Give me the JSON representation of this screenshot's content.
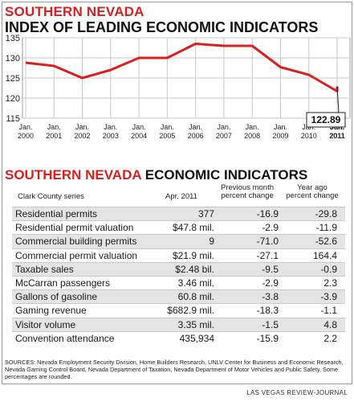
{
  "header": {
    "region": "SOUTHERN NEVADA",
    "title": "INDEX OF LEADING ECONOMIC INDICATORS"
  },
  "chart_data": {
    "type": "line",
    "x": [
      {
        "l1": "Jan.",
        "l2": "2000"
      },
      {
        "l1": "Jan.",
        "l2": "2001"
      },
      {
        "l1": "Jan.",
        "l2": "2002"
      },
      {
        "l1": "Jan.",
        "l2": "2003"
      },
      {
        "l1": "Jan.",
        "l2": "2004"
      },
      {
        "l1": "Jan.",
        "l2": "2005"
      },
      {
        "l1": "Jan.",
        "l2": "2006"
      },
      {
        "l1": "Jan.",
        "l2": "2007"
      },
      {
        "l1": "Jan.",
        "l2": "2008"
      },
      {
        "l1": "Jan.",
        "l2": "2009"
      },
      {
        "l1": "Jan.",
        "l2": "2010"
      },
      {
        "l1": "Jan.",
        "l2": "2011"
      },
      {
        "l1": "Jun.",
        "l2": "2011"
      }
    ],
    "values": [
      128.8,
      128.0,
      125.0,
      127.0,
      130.0,
      130.0,
      133.5,
      133.0,
      133.0,
      127.7,
      125.8,
      121.7,
      122.89
    ],
    "yticks": [
      115,
      120,
      125,
      130,
      135
    ],
    "ylim": [
      115,
      135
    ],
    "callout": "122.89",
    "grid": true,
    "colors": {
      "line": "#d8201f",
      "grid": "#c8c8c8",
      "plot_bg": "#ffffff"
    }
  },
  "table": {
    "title_red": "SOUTHERN NEVADA",
    "title_black": "ECONOMIC INDICATORS",
    "headers": {
      "series": "Clark County series",
      "amount": "Apr. 2011",
      "prev_line1": "Previous month",
      "prev_line2": "percent change",
      "year_line1": "Year ago",
      "year_line2": "percent change"
    },
    "rows": [
      {
        "series": "Residential permits",
        "amount": "377",
        "prev": "-16.9",
        "year": "-29.8"
      },
      {
        "series": "Residential permit valuation",
        "amount": "$47.8 mil.",
        "prev": "-2.9",
        "year": "-11.9"
      },
      {
        "series": "Commercial building permits",
        "amount": "9",
        "prev": "-71.0",
        "year": "-52.6"
      },
      {
        "series": "Commercial permit valuation",
        "amount": "$21.9 mil.",
        "prev": "-27.1",
        "year": "164.4"
      },
      {
        "series": "Taxable sales",
        "amount": "$2.48 bil.",
        "prev": "-9.5",
        "year": "-0.9"
      },
      {
        "series": "McCarran passengers",
        "amount": "3.46 mil.",
        "prev": "-2.9",
        "year": "2.3"
      },
      {
        "series": "Gallons of gasoline",
        "amount": "60.8 mil.",
        "prev": "-3.8",
        "year": "-3.9"
      },
      {
        "series": "Gaming revenue",
        "amount": "$682.9 mil.",
        "prev": "-18.3",
        "year": "-1.1"
      },
      {
        "series": "Visitor volume",
        "amount": "3.35 mil.",
        "prev": "-1.5",
        "year": "4.8"
      },
      {
        "series": "Convention attendance",
        "amount": "435,934",
        "prev": "-15.9",
        "year": "2.2"
      }
    ]
  },
  "sources": "SOURCES: Nevada Employment Security Division, Home Builders Research, UNLV Center for Business and Economic Research, Nevada Gaming Control Board, Nevada Department of Taxation, Nevada Department of Motor Vehicles and Public Safety. Some percentages are rounded.",
  "credit": "LAS VEGAS REVIEW-JOURNAL"
}
